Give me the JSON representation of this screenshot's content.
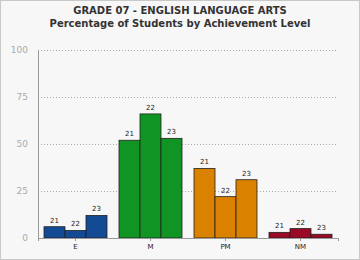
{
  "chart_data": {
    "type": "bar",
    "title": "GRADE 07 - ENGLISH LANGUAGE ARTS",
    "subtitle": "Percentage of Students by Achievement Level",
    "categories": [
      "E",
      "M",
      "PM",
      "NM"
    ],
    "series": [
      {
        "name": "21",
        "values": [
          6,
          52,
          37,
          3
        ]
      },
      {
        "name": "22",
        "values": [
          4,
          66,
          22,
          5
        ]
      },
      {
        "name": "23",
        "values": [
          12,
          53,
          31,
          2
        ]
      }
    ],
    "colors": [
      "#134a94",
      "#109424",
      "#db8100",
      "#9a0a24"
    ],
    "ylim": [
      0,
      100
    ],
    "yticks": [
      0,
      25,
      50,
      75,
      100
    ],
    "grid": true
  }
}
